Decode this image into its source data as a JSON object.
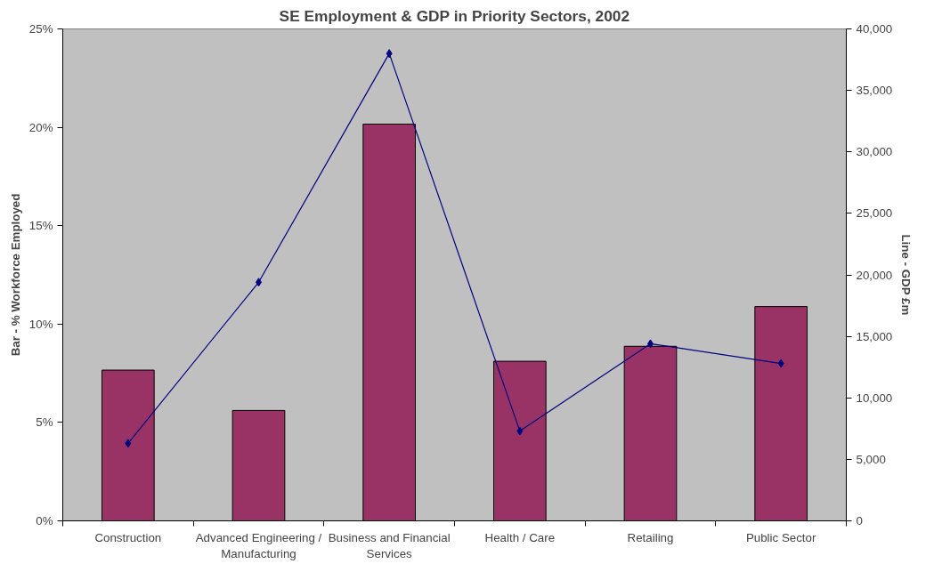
{
  "chart_data": {
    "type": "bar",
    "title": "SE Employment & GDP in Priority Sectors, 2002",
    "ylabel": "Bar - % Workforce Employed",
    "y2label": "Line - GDP £m",
    "categories": [
      "Construction",
      "Advanced Engineering / Manufacturing",
      "Business and Financial Services",
      "Health / Care",
      "Retailing",
      "Public Sector"
    ],
    "series": [
      {
        "color": "#993366",
        "values": [
          7.66,
          5.61,
          20.16,
          8.11,
          8.87,
          10.89
        ]
      },
      {
        "type": "line",
        "axis": "y2",
        "color": "#000080",
        "marker": "diamond",
        "line_style": "solid",
        "values": [
          6300,
          19400,
          38000,
          7300,
          14400,
          12800
        ]
      }
    ],
    "ylim": [
      0,
      25
    ],
    "yticks": [
      {
        "value": 0,
        "label": "0%"
      },
      {
        "value": 5,
        "label": "5%"
      },
      {
        "value": 10,
        "label": "10%"
      },
      {
        "value": 15,
        "label": "15%"
      },
      {
        "value": 20,
        "label": "20%"
      },
      {
        "value": 25,
        "label": "25%"
      }
    ],
    "y2lim": [
      0,
      40000
    ],
    "y2ticks": [
      0,
      {
        "value": 5000,
        "label": "5,000"
      },
      {
        "value": 10000,
        "label": "10,000"
      },
      {
        "value": 15000,
        "label": "15,000"
      },
      {
        "value": 20000,
        "label": "20,000"
      },
      {
        "value": 25000,
        "label": "25,000"
      },
      {
        "value": 30000,
        "label": "30,000"
      },
      {
        "value": 35000,
        "label": "35,000"
      },
      {
        "value": 40000,
        "label": "40,000"
      }
    ],
    "grid": false
  }
}
